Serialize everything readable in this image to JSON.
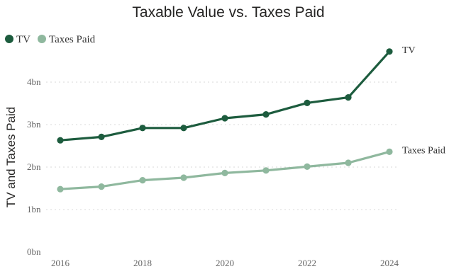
{
  "chart_data": {
    "type": "line",
    "title": "Taxable Value vs. Taxes Paid",
    "xlabel": "",
    "ylabel": "TV and Taxes Paid",
    "x": [
      2016,
      2017,
      2018,
      2019,
      2020,
      2021,
      2022,
      2023,
      2024
    ],
    "x_ticks": [
      "2016",
      "2018",
      "2020",
      "2022",
      "2024"
    ],
    "ylim": [
      0,
      4.6
    ],
    "y_ticks": [
      0,
      1,
      2,
      3,
      4
    ],
    "y_tick_labels": [
      "0bn",
      "1bn",
      "2bn",
      "3bn",
      "4bn"
    ],
    "grid": true,
    "legend_position": "top-left",
    "series": [
      {
        "name": "TV",
        "color": "#1d5c3e",
        "values": [
          2.63,
          2.71,
          2.92,
          2.92,
          3.15,
          3.24,
          3.51,
          3.64,
          4.72
        ]
      },
      {
        "name": "Taxes Paid",
        "color": "#8fb89e",
        "values": [
          1.48,
          1.54,
          1.69,
          1.75,
          1.86,
          1.92,
          2.01,
          2.1,
          2.36
        ]
      }
    ]
  }
}
